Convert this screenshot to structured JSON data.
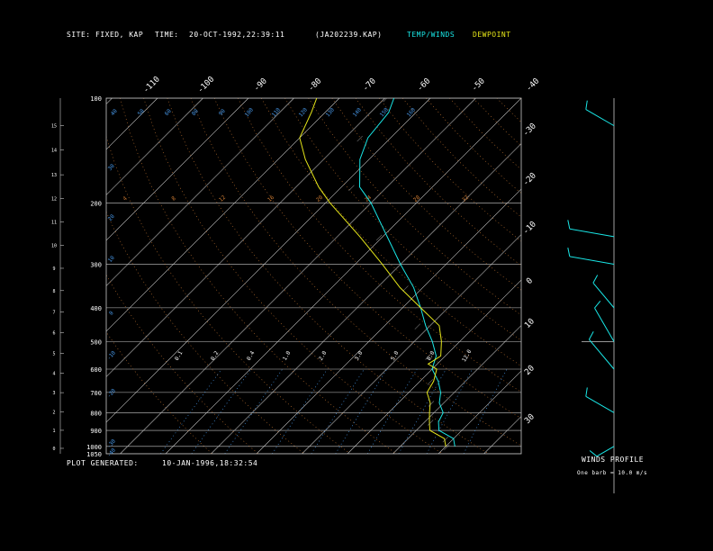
{
  "header": {
    "site_label": "SITE:",
    "site_value": "FIXED, KAP",
    "time_label": "TIME:",
    "time_value": "20-OCT-1992,22:39:11",
    "file": "(JA202239.KAP)",
    "legend_temp": "TEMP/WINDS",
    "legend_dew": "DEWPOINT"
  },
  "footer": {
    "plot_label": "PLOT GENERATED:",
    "plot_value": "10-JAN-1996,18:32:54",
    "wind_title": "WINDS PROFILE",
    "wind_note": "One barb = 10.0 m/s"
  },
  "colors": {
    "temp": "#19e6e6",
    "dew": "#e6e619",
    "grid": "#c8c8c8",
    "dry_adiabat": "#c87832",
    "moist_adiabat": "#c8c8c8",
    "mixing_ratio": "#4696e6"
  },
  "chart_data": {
    "type": "skew-t",
    "pressure_levels": [
      100,
      200,
      300,
      400,
      500,
      600,
      700,
      800,
      900,
      1000,
      1050
    ],
    "pressure_range": [
      100,
      1050
    ],
    "isotherm_labels_top": [
      -110,
      -100,
      -90,
      -80,
      -70,
      -60,
      -50,
      -40
    ],
    "isotherm_labels_right": [
      -30,
      -20,
      -10,
      0,
      10,
      20,
      30
    ],
    "height_ticks_km": [
      0,
      1,
      2,
      3,
      4,
      5,
      6,
      7,
      8,
      9,
      10,
      11,
      12,
      13,
      14,
      15
    ],
    "theta_labels_top": [
      "40",
      "50",
      "60",
      "80",
      "90",
      "100",
      "110",
      "120",
      "130",
      "140",
      "150",
      "160"
    ],
    "theta_labels_left": [
      "30",
      "20",
      "10",
      "0",
      "-10",
      "-20",
      "-30",
      "-40"
    ],
    "moist_labels": [
      "4",
      "8",
      "12",
      "16",
      "20",
      "24",
      "28",
      "32"
    ],
    "mixing_ratio_labels": [
      "0.1",
      "0.2",
      "0.4",
      "1.0",
      "2.0",
      "3.0",
      "5.0",
      "8.0",
      "12.0"
    ],
    "series": [
      {
        "name": "TEMP/WINDS",
        "points": [
          [
            1000,
            22
          ],
          [
            975,
            21
          ],
          [
            950,
            20
          ],
          [
            900,
            15
          ],
          [
            850,
            13
          ],
          [
            800,
            12
          ],
          [
            750,
            9
          ],
          [
            700,
            7
          ],
          [
            650,
            4
          ],
          [
            600,
            0
          ],
          [
            550,
            -2
          ],
          [
            500,
            -6
          ],
          [
            450,
            -11
          ],
          [
            400,
            -16
          ],
          [
            350,
            -22
          ],
          [
            300,
            -30
          ],
          [
            250,
            -39
          ],
          [
            200,
            -50
          ],
          [
            180,
            -56
          ],
          [
            150,
            -62
          ],
          [
            130,
            -65
          ],
          [
            110,
            -66
          ],
          [
            100,
            -68
          ]
        ]
      },
      {
        "name": "DEWPOINT",
        "points": [
          [
            1000,
            20
          ],
          [
            975,
            19
          ],
          [
            950,
            18
          ],
          [
            900,
            13
          ],
          [
            850,
            11
          ],
          [
            800,
            9
          ],
          [
            750,
            7
          ],
          [
            700,
            4
          ],
          [
            650,
            3
          ],
          [
            600,
            1
          ],
          [
            580,
            -2
          ],
          [
            550,
            -1
          ],
          [
            500,
            -4
          ],
          [
            450,
            -8
          ],
          [
            400,
            -16
          ],
          [
            350,
            -25
          ],
          [
            300,
            -34
          ],
          [
            250,
            -45
          ],
          [
            200,
            -59
          ],
          [
            180,
            -65
          ],
          [
            150,
            -74
          ],
          [
            130,
            -80
          ],
          [
            110,
            -83
          ],
          [
            100,
            -85
          ]
        ]
      }
    ],
    "winds_profile_approx": [
      {
        "pressure": 1000,
        "dir_deg": 240,
        "speed_ms": 10
      },
      {
        "pressure": 800,
        "dir_deg": 300,
        "speed_ms": 20
      },
      {
        "pressure": 600,
        "dir_deg": 320,
        "speed_ms": 25
      },
      {
        "pressure": 500,
        "dir_deg": 330,
        "speed_ms": 25
      },
      {
        "pressure": 400,
        "dir_deg": 320,
        "speed_ms": 20
      },
      {
        "pressure": 300,
        "dir_deg": 280,
        "speed_ms": 30
      },
      {
        "pressure": 250,
        "dir_deg": 280,
        "speed_ms": 30
      },
      {
        "pressure": 120,
        "dir_deg": 300,
        "speed_ms": 20
      }
    ]
  }
}
